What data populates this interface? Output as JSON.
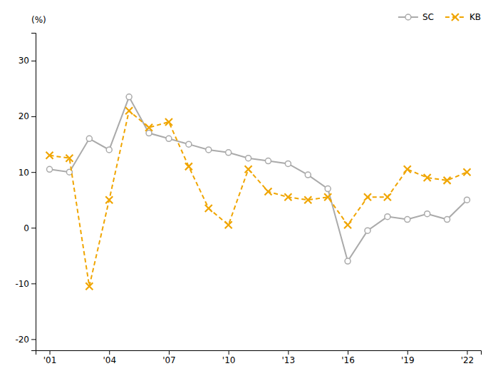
{
  "chart_data": {
    "type": "line",
    "ylabel": "(%)",
    "x": [
      2001,
      2002,
      2003,
      2004,
      2005,
      2006,
      2007,
      2008,
      2009,
      2010,
      2011,
      2012,
      2013,
      2014,
      2015,
      2016,
      2017,
      2018,
      2019,
      2020,
      2021,
      2022
    ],
    "series": [
      {
        "name": "SC",
        "color": "#aaaaaa",
        "marker": "o",
        "line_style": "solid",
        "values": [
          10.5,
          10.0,
          16.0,
          14.0,
          23.5,
          17.0,
          16.0,
          15.0,
          14.0,
          13.5,
          12.5,
          12.0,
          11.5,
          9.5,
          7.0,
          -6.0,
          -0.5,
          2.0,
          1.5,
          2.5,
          1.5,
          5.0
        ]
      },
      {
        "name": "KB",
        "color": "#F0A500",
        "marker": "x",
        "line_style": "dashed",
        "values": [
          13.0,
          12.5,
          -10.5,
          5.0,
          21.0,
          18.0,
          19.0,
          11.0,
          3.5,
          0.5,
          10.5,
          6.5,
          5.5,
          5.0,
          5.5,
          0.5,
          5.5,
          5.5,
          10.5,
          9.0,
          8.5,
          10.0
        ]
      }
    ],
    "xlim": [
      2000.3,
      2022.7
    ],
    "xticks": [
      {
        "value": 2001,
        "label": "'01"
      },
      {
        "value": 2004,
        "label": "'04"
      },
      {
        "value": 2007,
        "label": "'07"
      },
      {
        "value": 2010,
        "label": "'10"
      },
      {
        "value": 2013,
        "label": "'13"
      },
      {
        "value": 2016,
        "label": "'16"
      },
      {
        "value": 2019,
        "label": "'19"
      },
      {
        "value": 2022,
        "label": "'22"
      }
    ],
    "ylim": [
      -22,
      35
    ],
    "yticks": [
      -20,
      -10,
      0,
      10,
      20,
      30
    ],
    "legend": "upper right",
    "grid": false
  }
}
